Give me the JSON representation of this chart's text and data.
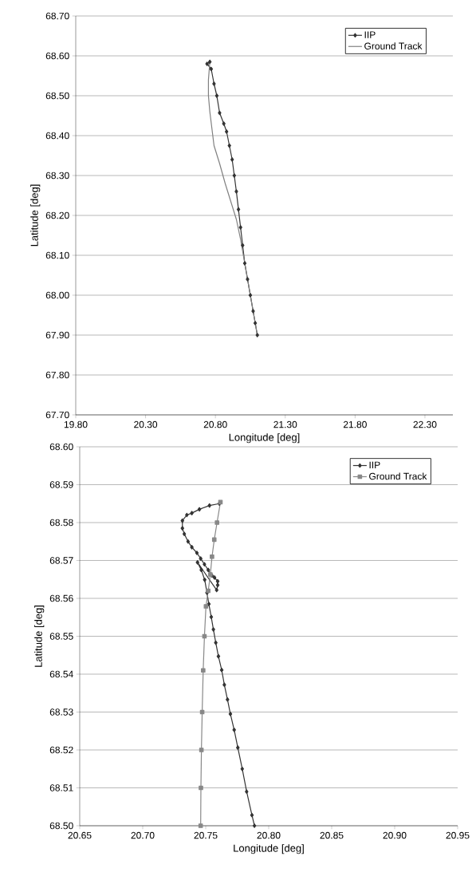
{
  "chart_data": [
    {
      "type": "line",
      "xlabel": "Longitude [deg]",
      "ylabel": "Latitude [deg]",
      "xlim": [
        19.8,
        22.5
      ],
      "ylim": [
        67.7,
        68.7
      ],
      "xticks": [
        {
          "value": 19.8,
          "label": "19.80"
        },
        {
          "value": 20.3,
          "label": "20.30"
        },
        {
          "value": 20.8,
          "label": "20.80"
        },
        {
          "value": 21.3,
          "label": "21.30"
        },
        {
          "value": 21.8,
          "label": "21.80"
        },
        {
          "value": 22.3,
          "label": "22.30"
        }
      ],
      "yticks": [
        {
          "value": 67.7,
          "label": "67.70"
        },
        {
          "value": 67.8,
          "label": "67.80"
        },
        {
          "value": 67.9,
          "label": "67.90"
        },
        {
          "value": 68.0,
          "label": "68.00"
        },
        {
          "value": 68.1,
          "label": "68.10"
        },
        {
          "value": 68.2,
          "label": "68.20"
        },
        {
          "value": 68.3,
          "label": "68.30"
        },
        {
          "value": 68.4,
          "label": "68.40"
        },
        {
          "value": 68.5,
          "label": "68.50"
        },
        {
          "value": 68.6,
          "label": "68.60"
        },
        {
          "value": 68.7,
          "label": "68.70"
        }
      ],
      "grid": "y",
      "legend": "top right",
      "series": [
        {
          "name": "IIP",
          "color": "#333333",
          "marker": "diamond",
          "x": [
            20.76,
            20.74,
            20.77,
            20.79,
            20.81,
            20.83,
            20.86,
            20.88,
            20.9,
            20.92,
            20.935,
            20.95,
            20.965,
            20.98,
            20.995,
            21.01,
            21.03,
            21.05,
            21.07,
            21.085,
            21.1
          ],
          "values": [
            68.585,
            68.58,
            68.567,
            68.53,
            68.5,
            68.457,
            68.43,
            68.41,
            68.375,
            68.34,
            68.3,
            68.26,
            68.215,
            68.17,
            68.125,
            68.08,
            68.04,
            68.0,
            67.96,
            67.93,
            67.9
          ]
        },
        {
          "name": "Ground Track",
          "color": "#808080",
          "marker": "none",
          "x": [
            20.76,
            20.75,
            20.75,
            20.76,
            20.79,
            20.83,
            20.87,
            20.91,
            20.95,
            20.98,
            21.01,
            21.05,
            21.1
          ],
          "values": [
            68.585,
            68.54,
            68.5,
            68.46,
            68.375,
            68.33,
            68.28,
            68.235,
            68.19,
            68.14,
            68.08,
            68.0,
            67.9
          ]
        }
      ]
    },
    {
      "type": "line",
      "xlabel": "Longitude [deg]",
      "ylabel": "Latitude [deg]",
      "xlim": [
        20.65,
        20.95
      ],
      "ylim": [
        68.5,
        68.6
      ],
      "xticks": [
        {
          "value": 20.65,
          "label": "20.65"
        },
        {
          "value": 20.7,
          "label": "20.70"
        },
        {
          "value": 20.75,
          "label": "20.75"
        },
        {
          "value": 20.8,
          "label": "20.80"
        },
        {
          "value": 20.85,
          "label": "20.85"
        },
        {
          "value": 20.9,
          "label": "20.90"
        },
        {
          "value": 20.95,
          "label": "20.95"
        }
      ],
      "yticks": [
        {
          "value": 68.5,
          "label": "68.50"
        },
        {
          "value": 68.51,
          "label": "68.51"
        },
        {
          "value": 68.52,
          "label": "68.52"
        },
        {
          "value": 68.53,
          "label": "68.53"
        },
        {
          "value": 68.54,
          "label": "68.54"
        },
        {
          "value": 68.55,
          "label": "68.55"
        },
        {
          "value": 68.56,
          "label": "68.56"
        },
        {
          "value": 68.57,
          "label": "68.57"
        },
        {
          "value": 68.58,
          "label": "68.58"
        },
        {
          "value": 68.59,
          "label": "68.59"
        },
        {
          "value": 68.6,
          "label": "68.60"
        }
      ],
      "grid": "y",
      "legend": "top right",
      "series": [
        {
          "name": "IIP",
          "color": "#333333",
          "marker": "diamond",
          "x": [
            20.7608,
            20.753,
            20.745,
            20.739,
            20.735,
            20.7315,
            20.7315,
            20.733,
            20.736,
            20.739,
            20.743,
            20.746,
            20.749,
            20.752,
            20.755,
            20.757,
            20.7595,
            20.7595,
            20.7587,
            20.7435,
            20.7465,
            20.7492,
            20.751,
            20.7525,
            20.7544,
            20.7561,
            20.758,
            20.7601,
            20.7627,
            20.7648,
            20.7673,
            20.7696,
            20.7726,
            20.7755,
            20.779,
            20.7825,
            20.7867,
            20.7887
          ],
          "values": [
            68.585,
            68.5845,
            68.5835,
            68.5825,
            68.582,
            68.5805,
            68.5785,
            68.577,
            68.575,
            68.5735,
            68.572,
            68.5705,
            68.569,
            68.5675,
            68.566,
            68.5655,
            68.5645,
            68.5635,
            68.5622,
            68.5695,
            68.5675,
            68.5649,
            68.5615,
            68.5585,
            68.5551,
            68.5518,
            68.5483,
            68.5447,
            68.5411,
            68.5372,
            68.5333,
            68.5295,
            68.5253,
            68.5206,
            68.515,
            68.509,
            68.5028,
            68.5
          ]
        },
        {
          "name": "Ground Track",
          "color": "#888888",
          "marker": "square",
          "x": [
            20.7617,
            20.759,
            20.7568,
            20.755,
            20.7537,
            20.752,
            20.7502,
            20.749,
            20.748,
            20.7472,
            20.7466,
            20.7462,
            20.746
          ],
          "values": [
            68.5854,
            68.58,
            68.5755,
            68.571,
            68.5663,
            68.562,
            68.5579,
            68.55,
            68.541,
            68.53,
            68.52,
            68.51,
            68.5
          ]
        }
      ]
    }
  ]
}
